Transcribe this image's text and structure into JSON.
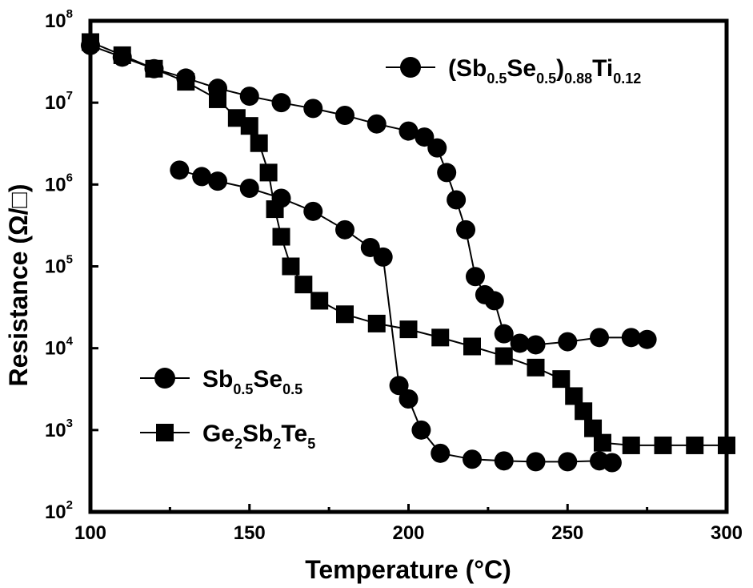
{
  "chart_data": {
    "type": "scatter",
    "title": "",
    "xlabel": "Temperature (°C)",
    "ylabel": "Resistance (Ω/□)",
    "xlim": [
      100,
      300
    ],
    "ylim": [
      100,
      100000000
    ],
    "yscale": "log",
    "grid": false,
    "legend_placement": "top-right and bottom-left",
    "x_ticks": [
      "100",
      "150",
      "200",
      "250",
      "300"
    ],
    "y_ticks": [
      {
        "base": "10",
        "exp": "2"
      },
      {
        "base": "10",
        "exp": "3"
      },
      {
        "base": "10",
        "exp": "4"
      },
      {
        "base": "10",
        "exp": "5"
      },
      {
        "base": "10",
        "exp": "6"
      },
      {
        "base": "10",
        "exp": "7"
      },
      {
        "base": "10",
        "exp": "8"
      }
    ],
    "series": [
      {
        "name": "(Sb0.5Se0.5)0.88Ti0.12",
        "legend_parts": [
          {
            "t": "(Sb",
            "s": false
          },
          {
            "t": "0.5",
            "s": true
          },
          {
            "t": "Se",
            "s": false
          },
          {
            "t": "0.5",
            "s": true
          },
          {
            "t": ")",
            "s": false
          },
          {
            "t": "0.88",
            "s": true
          },
          {
            "t": "Ti",
            "s": false
          },
          {
            "t": "0.12",
            "s": true
          }
        ],
        "marker": "circle",
        "color": "#000000",
        "points": [
          [
            100,
            50000000
          ],
          [
            110,
            36000000
          ],
          [
            120,
            26000000
          ],
          [
            130,
            20000000
          ],
          [
            140,
            15000000
          ],
          [
            150,
            12000000
          ],
          [
            160,
            10000000
          ],
          [
            170,
            8500000
          ],
          [
            180,
            7000000
          ],
          [
            190,
            5500000
          ],
          [
            200,
            4500000
          ],
          [
            205,
            3800000
          ],
          [
            209,
            2800000
          ],
          [
            212,
            1400000
          ],
          [
            215,
            650000
          ],
          [
            218,
            280000
          ],
          [
            221,
            75000
          ],
          [
            224,
            45000
          ],
          [
            227,
            38000
          ],
          [
            230,
            15000
          ],
          [
            235,
            11500
          ],
          [
            240,
            11000
          ],
          [
            250,
            12000
          ],
          [
            260,
            13500
          ],
          [
            270,
            13500
          ],
          [
            275,
            12800
          ]
        ]
      },
      {
        "name": "Sb0.5Se0.5",
        "legend_parts": [
          {
            "t": "Sb",
            "s": false
          },
          {
            "t": "0.5",
            "s": true
          },
          {
            "t": "Se",
            "s": false
          },
          {
            "t": "0.5",
            "s": true
          }
        ],
        "marker": "circle",
        "color": "#000000",
        "points": [
          [
            128,
            1500000
          ],
          [
            135,
            1250000
          ],
          [
            140,
            1100000
          ],
          [
            150,
            900000
          ],
          [
            160,
            680000
          ],
          [
            170,
            470000
          ],
          [
            180,
            280000
          ],
          [
            188,
            170000
          ],
          [
            192,
            130000
          ],
          [
            197,
            3500
          ],
          [
            200,
            2400
          ],
          [
            204,
            1000
          ],
          [
            210,
            520
          ],
          [
            220,
            440
          ],
          [
            230,
            420
          ],
          [
            240,
            410
          ],
          [
            250,
            410
          ],
          [
            260,
            420
          ],
          [
            264,
            400
          ]
        ]
      },
      {
        "name": "Ge2Sb2Te5",
        "legend_parts": [
          {
            "t": "Ge",
            "s": false
          },
          {
            "t": "2",
            "s": true
          },
          {
            "t": "Sb",
            "s": false
          },
          {
            "t": "2",
            "s": true
          },
          {
            "t": "Te",
            "s": false
          },
          {
            "t": "5",
            "s": true
          }
        ],
        "marker": "square",
        "color": "#000000",
        "points": [
          [
            100,
            55000000
          ],
          [
            110,
            38000000
          ],
          [
            120,
            26000000
          ],
          [
            130,
            18000000
          ],
          [
            140,
            11000000
          ],
          [
            146,
            6500000
          ],
          [
            150,
            5200000
          ],
          [
            153,
            3200000
          ],
          [
            156,
            1400000
          ],
          [
            158,
            500000
          ],
          [
            160,
            230000
          ],
          [
            163,
            100000
          ],
          [
            167,
            60000
          ],
          [
            172,
            38000
          ],
          [
            180,
            26000
          ],
          [
            190,
            20000
          ],
          [
            200,
            17000
          ],
          [
            210,
            13500
          ],
          [
            220,
            10500
          ],
          [
            230,
            8000
          ],
          [
            240,
            5800
          ],
          [
            248,
            4200
          ],
          [
            252,
            2600
          ],
          [
            255,
            1700
          ],
          [
            258,
            1050
          ],
          [
            261,
            700
          ],
          [
            270,
            650
          ],
          [
            280,
            650
          ],
          [
            290,
            650
          ],
          [
            300,
            650
          ]
        ]
      }
    ]
  }
}
